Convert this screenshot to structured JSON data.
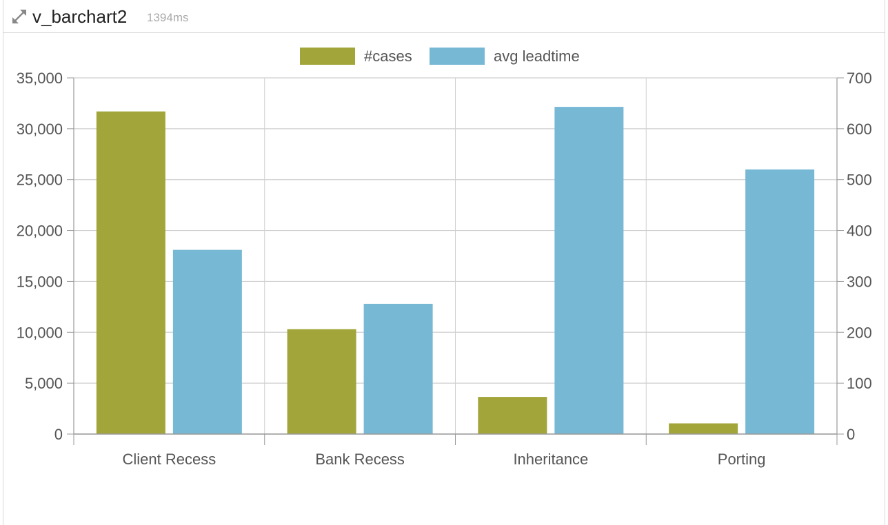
{
  "header": {
    "title": "v_barchart2",
    "timing": "1394ms",
    "expand_icon": "expand-arrows-icon"
  },
  "colors": {
    "cases": "#a2a53a",
    "leadtime": "#77b9d4",
    "grid": "#cfcfcf",
    "axis": "#999999",
    "text": "#555555"
  },
  "chart_data": {
    "type": "bar",
    "categories": [
      "Client Recess",
      "Bank Recess",
      "Inheritance",
      "Porting"
    ],
    "series": [
      {
        "name": "#cases",
        "axis": "left",
        "values": [
          31700,
          10300,
          3650,
          1050
        ]
      },
      {
        "name": "avg leadtime",
        "axis": "right",
        "values": [
          362,
          256,
          643,
          520
        ]
      }
    ],
    "y_left": {
      "min": 0,
      "max": 35000,
      "ticks": [
        "0",
        "5,000",
        "10,000",
        "15,000",
        "20,000",
        "25,000",
        "30,000",
        "35,000"
      ]
    },
    "y_right": {
      "min": 0,
      "max": 700,
      "ticks": [
        "0",
        "100",
        "200",
        "300",
        "400",
        "500",
        "600",
        "700"
      ]
    },
    "legend_position": "top-center",
    "grid": true,
    "title": "",
    "xlabel": "",
    "ylabel": ""
  }
}
